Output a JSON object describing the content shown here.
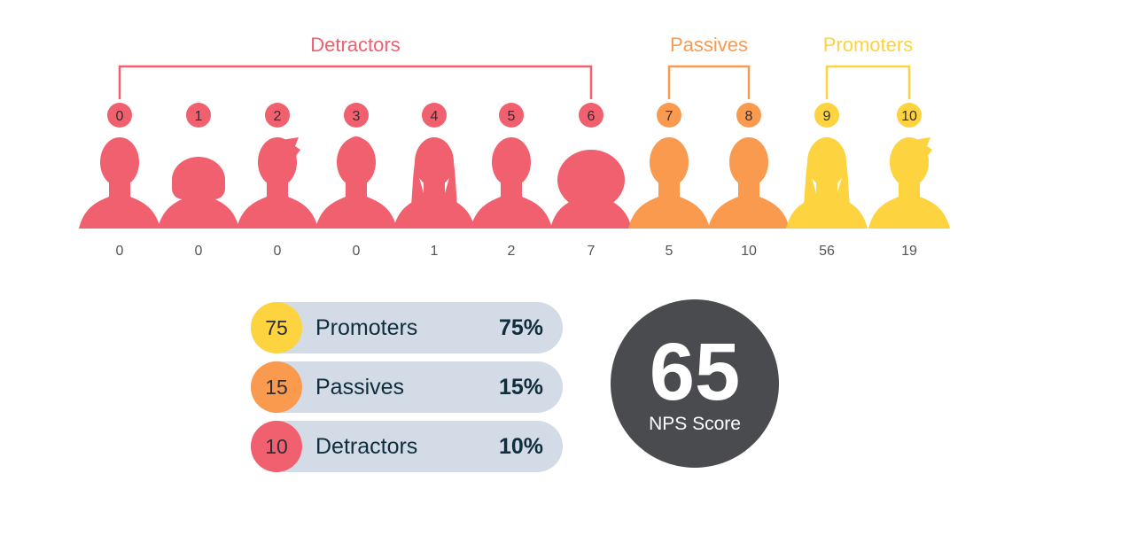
{
  "chart_data": {
    "type": "bar",
    "categories": [
      "0",
      "1",
      "2",
      "3",
      "4",
      "5",
      "6",
      "7",
      "8",
      "9",
      "10"
    ],
    "values": [
      0,
      0,
      0,
      0,
      1,
      2,
      7,
      5,
      10,
      56,
      19
    ],
    "groups": [
      {
        "name": "Detractors",
        "from": 0,
        "to": 6,
        "color": "#f0606e"
      },
      {
        "name": "Passives",
        "from": 7,
        "to": 8,
        "color": "#f99a4f"
      },
      {
        "name": "Promoters",
        "from": 9,
        "to": 10,
        "color": "#fdd33f"
      }
    ],
    "icon_style": [
      "man",
      "woman-curly",
      "man-quiff",
      "woman-bun",
      "woman-long",
      "man",
      "woman-bob",
      "man",
      "man",
      "woman-long",
      "man-quiff"
    ]
  },
  "summary": [
    {
      "count": "75",
      "label": "Promoters",
      "percent": "75%",
      "color": "#fdd33f"
    },
    {
      "count": "15",
      "label": "Passives",
      "percent": "15%",
      "color": "#f99a4f"
    },
    {
      "count": "10",
      "label": "Detractors",
      "percent": "10%",
      "color": "#f0606e"
    }
  ],
  "nps": {
    "value": "65",
    "caption": "NPS Score",
    "color": "#4a4b4f"
  }
}
